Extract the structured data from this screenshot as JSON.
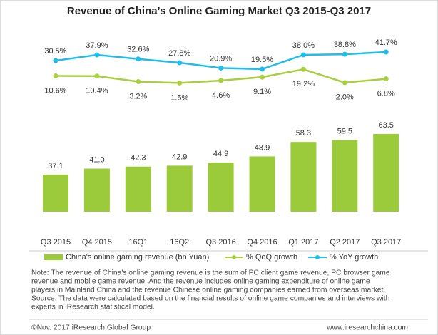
{
  "chart_data": {
    "type": "combo",
    "title": "Revenue of China’s Online Gaming Market Q3 2015-Q3 2017",
    "categories": [
      "Q3 2015",
      "Q4 2015",
      "16Q1",
      "16Q2",
      "Q3 2016",
      "Q4 2016",
      "Q1 2017",
      "Q2 2017",
      "Q3 2017"
    ],
    "series": [
      {
        "name": "China's online gaming revenue (bn Yuan)",
        "type": "bar",
        "color": "#9bcb3b",
        "values": [
          37.1,
          41.0,
          42.3,
          42.9,
          44.9,
          48.9,
          58.3,
          59.5,
          63.5
        ],
        "value_labels": [
          "37.1",
          "41.0",
          "42.3",
          "42.9",
          "44.9",
          "48.9",
          "58.3",
          "59.5",
          "63.5"
        ]
      },
      {
        "name": "% QoQ growth",
        "type": "line",
        "color": "#a9cf3f",
        "values": [
          10.6,
          10.4,
          3.2,
          1.5,
          4.6,
          9.1,
          19.2,
          2.0,
          6.8
        ],
        "value_labels": [
          "10.6%",
          "10.4%",
          "3.2%",
          "1.5%",
          "4.6%",
          "9.1%",
          "19.2%",
          "2.0%",
          "6.8%"
        ]
      },
      {
        "name": "% YoY growth",
        "type": "line",
        "color": "#1fbde8",
        "values": [
          30.5,
          37.9,
          32.6,
          27.8,
          20.9,
          19.5,
          38.0,
          38.8,
          41.7
        ],
        "value_labels": [
          "30.5%",
          "37.9%",
          "32.6%",
          "27.8%",
          "20.9%",
          "19.5%",
          "38.0%",
          "38.8%",
          "41.7%"
        ]
      }
    ],
    "legend": "bottom"
  },
  "note": [
    "Note: The revenue of China's online gaming revenue is the sum of PC client game revenue, PC browser game",
    "revenue and mobile game revenue. And the revenue includes online gaming expenditure of online game",
    "players in Mainland China and the revenue Chinese online gaming companies earned from overseas market.",
    "Source: The data were calculated based on the financial results of online game companies and interviews with",
    "experts in iResearch statistical model."
  ],
  "footer": {
    "left": "©Nov. 2017 iResearch Global Group",
    "right": "www.iresearchchina.com"
  }
}
